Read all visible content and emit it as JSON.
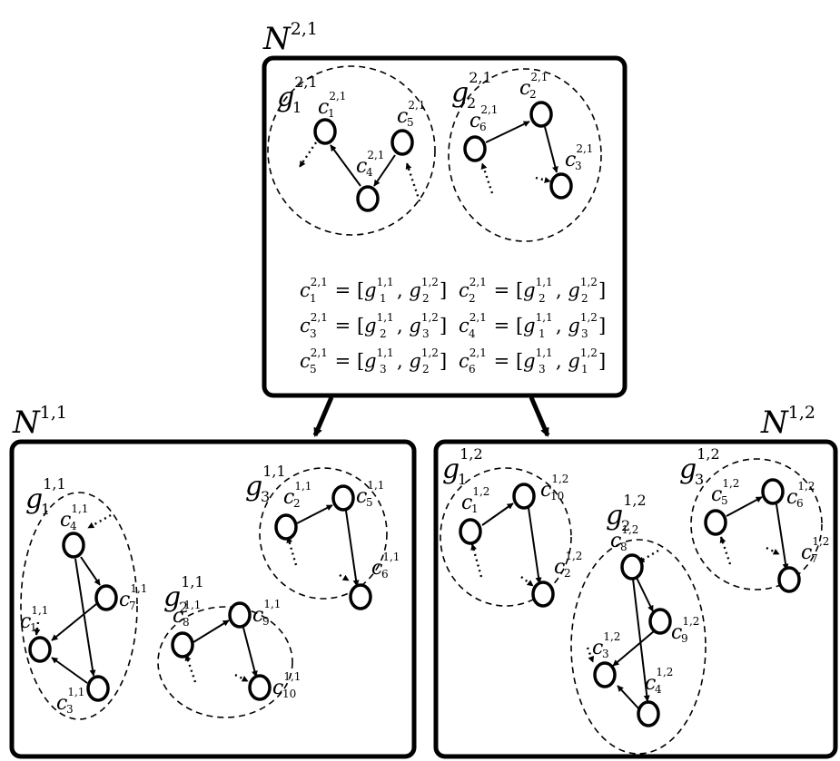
{
  "boxes": {
    "top": {
      "label": "N",
      "sup": "2,1"
    },
    "left": {
      "label": "N",
      "sup": "1,1"
    },
    "right": {
      "label": "N",
      "sup": "1,2"
    }
  },
  "groups": {
    "top_g1": {
      "label": "g",
      "sub": "1",
      "sup": "2,1"
    },
    "top_g2": {
      "label": "g",
      "sub": "2",
      "sup": "2,1"
    },
    "left_g1": {
      "label": "g",
      "sub": "1",
      "sup": "1,1"
    },
    "left_g2": {
      "label": "g",
      "sub": "2",
      "sup": "1,1"
    },
    "left_g3": {
      "label": "g",
      "sub": "3",
      "sup": "1,1"
    },
    "right_g1": {
      "label": "g",
      "sub": "1",
      "sup": "1,2"
    },
    "right_g2": {
      "label": "g",
      "sub": "2",
      "sup": "1,2"
    },
    "right_g3": {
      "label": "g",
      "sub": "3",
      "sup": "1,2"
    }
  },
  "nodes": {
    "top": {
      "c1": {
        "label": "c",
        "sub": "1",
        "sup": "2,1"
      },
      "c2": {
        "label": "c",
        "sub": "2",
        "sup": "2,1"
      },
      "c3": {
        "label": "c",
        "sub": "3",
        "sup": "2,1"
      },
      "c4": {
        "label": "c",
        "sub": "4",
        "sup": "2,1"
      },
      "c5": {
        "label": "c",
        "sub": "5",
        "sup": "2,1"
      },
      "c6": {
        "label": "c",
        "sub": "6",
        "sup": "2,1"
      }
    },
    "left": {
      "c1": {
        "label": "c",
        "sub": "1",
        "sup": "1,1"
      },
      "c2": {
        "label": "c",
        "sub": "2",
        "sup": "1,1"
      },
      "c3": {
        "label": "c",
        "sub": "3",
        "sup": "1,1"
      },
      "c4": {
        "label": "c",
        "sub": "4",
        "sup": "1,1"
      },
      "c5": {
        "label": "c",
        "sub": "5",
        "sup": "1,1"
      },
      "c6": {
        "label": "c",
        "sub": "6",
        "sup": "1,1"
      },
      "c7": {
        "label": "c",
        "sub": "7",
        "sup": "1,1"
      },
      "c8": {
        "label": "c",
        "sub": "8",
        "sup": "1,1"
      },
      "c9": {
        "label": "c",
        "sub": "9",
        "sup": "1,1"
      },
      "c10": {
        "label": "c",
        "sub": "10",
        "sup": "1,1"
      }
    },
    "right": {
      "c1": {
        "label": "c",
        "sub": "1",
        "sup": "1,2"
      },
      "c2": {
        "label": "c",
        "sub": "2",
        "sup": "1,2"
      },
      "c3": {
        "label": "c",
        "sub": "3",
        "sup": "1,2"
      },
      "c4": {
        "label": "c",
        "sub": "4",
        "sup": "1,2"
      },
      "c5": {
        "label": "c",
        "sub": "5",
        "sup": "1,2"
      },
      "c6": {
        "label": "c",
        "sub": "6",
        "sup": "1,2"
      },
      "c7": {
        "label": "c",
        "sub": "7",
        "sup": "1,2"
      },
      "c8": {
        "label": "c",
        "sub": "8",
        "sup": "1,2"
      },
      "c9": {
        "label": "c",
        "sub": "9",
        "sup": "1,2"
      },
      "c10": {
        "label": "c",
        "sub": "10",
        "sup": "1,2"
      }
    }
  },
  "equations": [
    {
      "lhs_sub": "1",
      "lhs_sup": "2,1",
      "a_sub": "1",
      "a_sup": "1,1",
      "b_sub": "2",
      "b_sup": "1,2"
    },
    {
      "lhs_sub": "2",
      "lhs_sup": "2,1",
      "a_sub": "2",
      "a_sup": "1,1",
      "b_sub": "2",
      "b_sup": "1,2"
    },
    {
      "lhs_sub": "3",
      "lhs_sup": "2,1",
      "a_sub": "2",
      "a_sup": "1,1",
      "b_sub": "3",
      "b_sup": "1,2"
    },
    {
      "lhs_sub": "4",
      "lhs_sup": "2,1",
      "a_sub": "1",
      "a_sup": "1,1",
      "b_sub": "3",
      "b_sup": "1,2"
    },
    {
      "lhs_sub": "5",
      "lhs_sup": "2,1",
      "a_sub": "3",
      "a_sup": "1,1",
      "b_sub": "2",
      "b_sup": "1,2"
    },
    {
      "lhs_sub": "6",
      "lhs_sup": "2,1",
      "a_sub": "3",
      "a_sup": "1,1",
      "b_sub": "1",
      "b_sup": "1,2"
    }
  ],
  "equation_parts": {
    "lhs": "c",
    "var": "g",
    "equals": " = [",
    "comma": ", ",
    "close": "]"
  }
}
